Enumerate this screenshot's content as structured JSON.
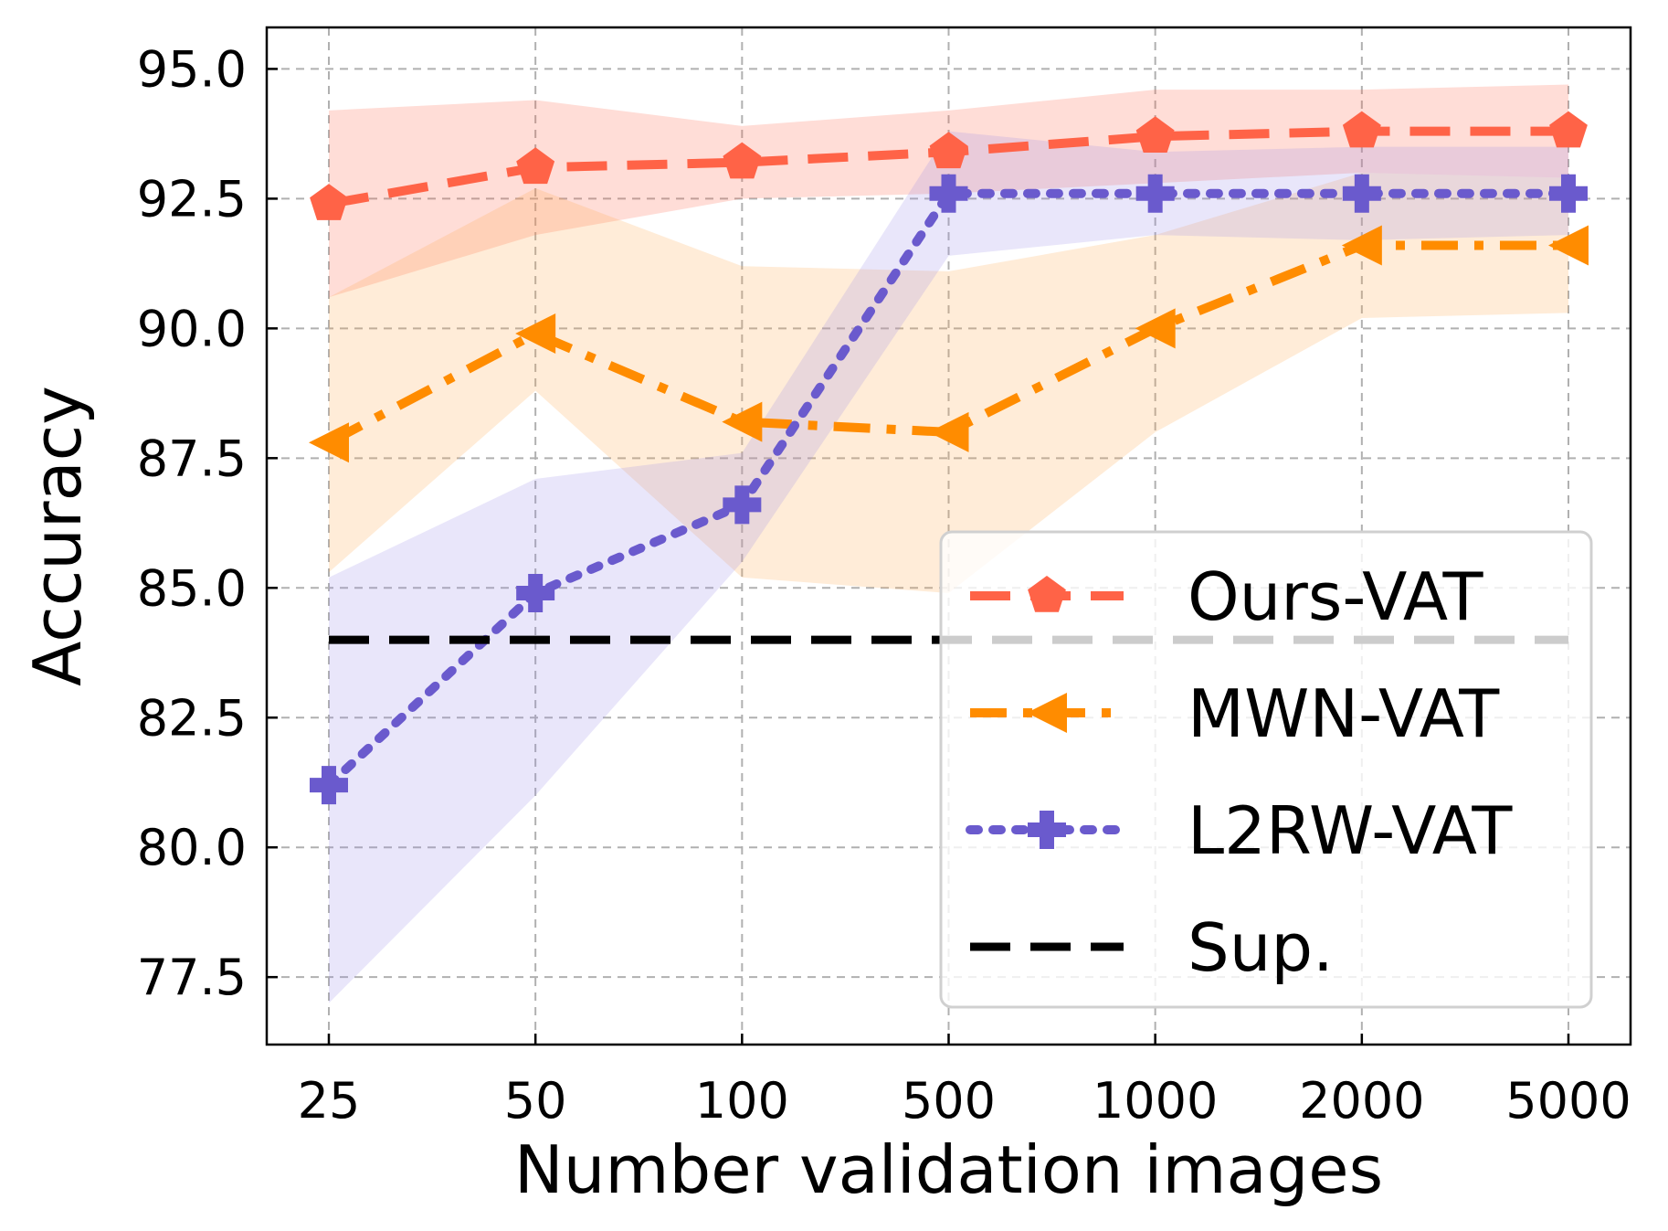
{
  "chart_data": {
    "type": "line",
    "xlabel": "Number validation images",
    "ylabel": "Accuracy",
    "categories": [
      "25",
      "50",
      "100",
      "500",
      "1000",
      "2000",
      "5000"
    ],
    "ylim": [
      76.2,
      95.8
    ],
    "yticks": [
      "77.5",
      "80.0",
      "82.5",
      "85.0",
      "87.5",
      "90.0",
      "92.5",
      "95.0"
    ],
    "grid": true,
    "legend_position": "lower-right",
    "series": [
      {
        "name": "Ours-VAT",
        "color": "#ff6347",
        "band_color": "#ff6347",
        "linestyle": "dashed",
        "marker": "pentagon",
        "values": [
          92.4,
          93.1,
          93.2,
          93.4,
          93.7,
          93.8,
          93.8
        ],
        "upper": [
          94.2,
          94.4,
          93.9,
          94.2,
          94.6,
          94.6,
          94.7
        ],
        "lower": [
          90.6,
          91.8,
          92.5,
          92.6,
          92.8,
          93.0,
          92.9
        ]
      },
      {
        "name": "MWN-VAT",
        "color": "#ff8c00",
        "band_color": "#ffa94d",
        "linestyle": "dashdot",
        "marker": "triangle-left",
        "values": [
          87.8,
          89.9,
          88.2,
          88.0,
          90.0,
          91.6,
          91.6
        ],
        "upper": [
          90.6,
          92.7,
          91.2,
          91.1,
          91.8,
          93.0,
          92.9
        ],
        "lower": [
          85.3,
          88.8,
          85.2,
          84.9,
          88.0,
          90.2,
          90.3
        ]
      },
      {
        "name": "L2RW-VAT",
        "color": "#6a5acd",
        "band_color": "#9b8fe6",
        "linestyle": "dotted",
        "marker": "plus",
        "values": [
          81.2,
          84.9,
          86.6,
          92.6,
          92.6,
          92.6,
          92.6
        ],
        "upper": [
          85.2,
          87.1,
          87.6,
          93.8,
          93.4,
          93.5,
          93.5
        ],
        "lower": [
          77.0,
          81.0,
          85.5,
          91.4,
          91.8,
          91.7,
          91.8
        ]
      },
      {
        "name": "Sup.",
        "color": "#000000",
        "linestyle": "dashed",
        "marker": "none",
        "values": [
          84.0,
          84.0,
          84.0,
          84.0,
          84.0,
          84.0,
          84.0
        ]
      }
    ]
  }
}
